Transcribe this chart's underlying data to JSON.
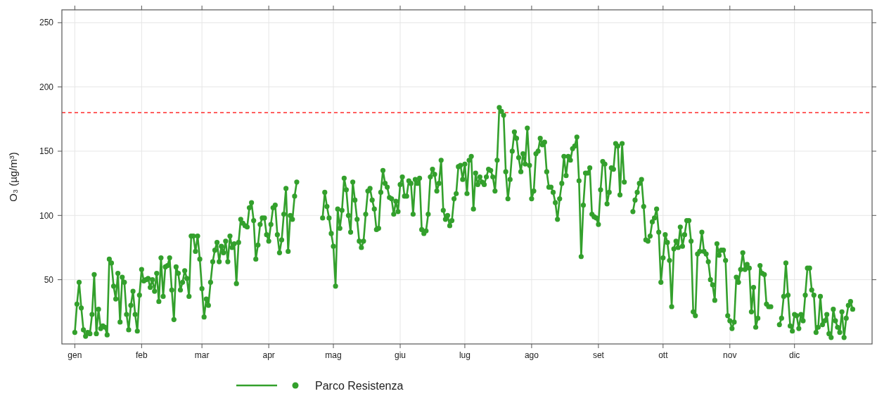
{
  "chart_data": {
    "type": "line",
    "ylabel": "O₃ (µg/m³)",
    "categories": [
      "gen",
      null,
      null,
      null,
      null,
      null,
      null,
      null,
      null,
      null,
      null,
      null,
      null,
      null,
      null,
      null,
      null,
      null,
      null,
      null,
      null,
      null,
      null,
      null,
      null,
      null,
      null,
      null,
      null,
      null,
      null,
      "feb",
      null,
      null,
      null,
      null,
      null,
      null,
      null,
      null,
      null,
      null,
      null,
      null,
      null,
      null,
      null,
      null,
      null,
      null,
      null,
      null,
      null,
      null,
      null,
      null,
      null,
      null,
      null,
      "mar",
      null,
      null,
      null,
      null,
      null,
      null,
      null,
      null,
      null,
      null,
      null,
      null,
      null,
      null,
      null,
      null,
      null,
      null,
      null,
      null,
      null,
      null,
      null,
      null,
      null,
      null,
      null,
      null,
      null,
      null,
      "apr",
      null,
      null,
      null,
      null,
      null,
      null,
      null,
      null,
      null,
      null,
      null,
      null,
      null,
      null,
      null,
      null,
      null,
      null,
      null,
      null,
      null,
      null,
      null,
      null,
      null,
      null,
      null,
      null,
      null,
      "mag",
      null,
      null,
      null,
      null,
      null,
      null,
      null,
      null,
      null,
      null,
      null,
      null,
      null,
      null,
      null,
      null,
      null,
      null,
      null,
      null,
      null,
      null,
      null,
      null,
      null,
      null,
      null,
      null,
      null,
      null,
      "giu",
      null,
      null,
      null,
      null,
      null,
      null,
      null,
      null,
      null,
      null,
      null,
      null,
      null,
      null,
      null,
      null,
      null,
      null,
      null,
      null,
      null,
      null,
      null,
      null,
      null,
      null,
      null,
      null,
      null,
      "lug",
      null,
      null,
      null,
      null,
      null,
      null,
      null,
      null,
      null,
      null,
      null,
      null,
      null,
      null,
      null,
      null,
      null,
      null,
      null,
      null,
      null,
      null,
      null,
      null,
      null,
      null,
      null,
      null,
      null,
      null,
      "ago",
      null,
      null,
      null,
      null,
      null,
      null,
      null,
      null,
      null,
      null,
      null,
      null,
      null,
      null,
      null,
      null,
      null,
      null,
      null,
      null,
      null,
      null,
      null,
      null,
      null,
      null,
      null,
      null,
      null,
      null,
      "set",
      null,
      null,
      null,
      null,
      null,
      null,
      null,
      null,
      null,
      null,
      null,
      null,
      null,
      null,
      null,
      null,
      null,
      null,
      null,
      null,
      null,
      null,
      null,
      null,
      null,
      null,
      null,
      null,
      null,
      "ott",
      null,
      null,
      null,
      null,
      null,
      null,
      null,
      null,
      null,
      null,
      null,
      null,
      null,
      null,
      null,
      null,
      null,
      null,
      null,
      null,
      null,
      null,
      null,
      null,
      null,
      null,
      null,
      null,
      null,
      null,
      "nov",
      null,
      null,
      null,
      null,
      null,
      null,
      null,
      null,
      null,
      null,
      null,
      null,
      null,
      null,
      null,
      null,
      null,
      null,
      null,
      null,
      null,
      null,
      null,
      null,
      null,
      null,
      null,
      null,
      null,
      "dic",
      null,
      null,
      null,
      null,
      null,
      null,
      null,
      null,
      null,
      null,
      null,
      null,
      null,
      null,
      null,
      null,
      null,
      null,
      null,
      null,
      null,
      null,
      null,
      null,
      null,
      null,
      null,
      null,
      null,
      null
    ],
    "ylim": [
      0,
      260
    ],
    "yticks": [
      50,
      100,
      150,
      200,
      250
    ],
    "grid": true,
    "legend": "bottom",
    "marker": "circle",
    "line_style": "solid",
    "ref_lines": [
      {
        "axis": "y",
        "value": 180,
        "color": "#ff0000",
        "line_style": "dashed"
      }
    ],
    "series": [
      {
        "name": "Parco Resistenza",
        "color": "#33a02c",
        "values": [
          9,
          31,
          48,
          28,
          11,
          6,
          9,
          8,
          23,
          54,
          8,
          27,
          12,
          14,
          13,
          7,
          66,
          63,
          45,
          35,
          55,
          17,
          52,
          48,
          23,
          11,
          30,
          41,
          23,
          10,
          38,
          58,
          49,
          50,
          51,
          44,
          50,
          41,
          55,
          33,
          67,
          37,
          60,
          61,
          67,
          42,
          19,
          60,
          55,
          42,
          48,
          57,
          51,
          37,
          84,
          84,
          72,
          84,
          66,
          43,
          21,
          35,
          30,
          48,
          64,
          73,
          79,
          64,
          76,
          71,
          80,
          64,
          84,
          75,
          78,
          47,
          79,
          97,
          94,
          92,
          91,
          106,
          110,
          96,
          66,
          77,
          93,
          98,
          98,
          85,
          80,
          93,
          106,
          108,
          85,
          71,
          81,
          101,
          121,
          72,
          100,
          97,
          115,
          126,
          null,
          null,
          null,
          null,
          null,
          null,
          null,
          null,
          null,
          null,
          null,
          98,
          118,
          107,
          98,
          86,
          76,
          45,
          105,
          90,
          104,
          129,
          120,
          100,
          87,
          126,
          112,
          97,
          80,
          75,
          80,
          101,
          119,
          121,
          112,
          105,
          89,
          90,
          118,
          135,
          125,
          122,
          114,
          113,
          101,
          111,
          103,
          124,
          130,
          115,
          115,
          127,
          125,
          101,
          128,
          125,
          129,
          89,
          86,
          88,
          101,
          130,
          136,
          132,
          119,
          125,
          143,
          104,
          97,
          100,
          92,
          96,
          113,
          117,
          138,
          139,
          128,
          140,
          117,
          143,
          146,
          105,
          133,
          124,
          130,
          126,
          124,
          130,
          136,
          135,
          130,
          119,
          143,
          184,
          181,
          178,
          134,
          113,
          128,
          150,
          165,
          160,
          145,
          134,
          148,
          140,
          168,
          139,
          113,
          119,
          148,
          150,
          160,
          155,
          157,
          134,
          122,
          122,
          118,
          110,
          97,
          113,
          125,
          146,
          131,
          146,
          143,
          152,
          154,
          161,
          127,
          68,
          108,
          133,
          133,
          137,
          101,
          99,
          98,
          93,
          120,
          142,
          140,
          109,
          118,
          137,
          136,
          156,
          154,
          116,
          156,
          126,
          null,
          null,
          null,
          103,
          112,
          118,
          125,
          128,
          107,
          81,
          80,
          84,
          95,
          98,
          105,
          87,
          48,
          67,
          85,
          79,
          65,
          29,
          74,
          80,
          75,
          91,
          76,
          85,
          96,
          96,
          80,
          25,
          22,
          70,
          72,
          87,
          72,
          70,
          64,
          50,
          46,
          34,
          78,
          69,
          73,
          73,
          65,
          22,
          18,
          12,
          17,
          52,
          48,
          58,
          71,
          58,
          62,
          59,
          25,
          44,
          13,
          20,
          61,
          55,
          54,
          31,
          29,
          29,
          null,
          null,
          null,
          15,
          20,
          37,
          63,
          38,
          14,
          10,
          23,
          22,
          12,
          23,
          18,
          38,
          59,
          59,
          42,
          38,
          9,
          13,
          37,
          15,
          18,
          23,
          8,
          5,
          27,
          18,
          13,
          9,
          25,
          5,
          20,
          30,
          33,
          27,
          null,
          null,
          null
        ]
      }
    ]
  }
}
